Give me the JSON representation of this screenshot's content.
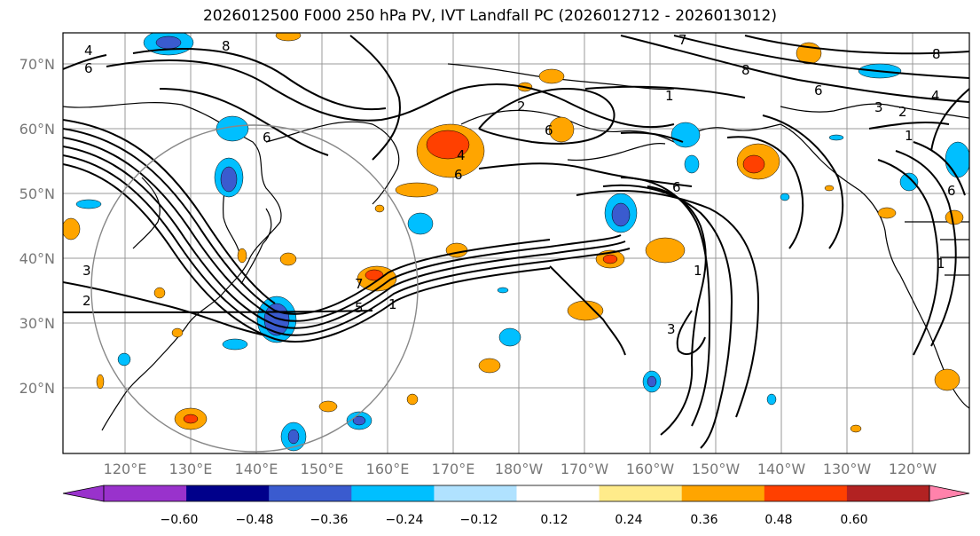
{
  "title": "2026012500 F000 250 hPa PV, IVT Landfall PC (2026012712 - 2026013012)",
  "lat_labels": [
    "70°N",
    "60°N",
    "50°N",
    "40°N",
    "30°N",
    "20°N"
  ],
  "lon_labels": [
    "120°E",
    "130°E",
    "140°E",
    "150°E",
    "160°E",
    "170°E",
    "180°W",
    "170°W",
    "160°W",
    "150°W",
    "140°W",
    "130°W",
    "120°W"
  ],
  "colorbar": {
    "ticks": [
      "−0.60",
      "−0.48",
      "−0.36",
      "−0.24",
      "−0.12",
      "0.12",
      "0.24",
      "0.36",
      "0.48",
      "0.60"
    ],
    "colors": [
      "#9932cc",
      "#00008b",
      "#3a5bcf",
      "#00bfff",
      "#b0e2ff",
      "#ffffff",
      "#ffeb8a",
      "#ffa500",
      "#ff4000",
      "#b22222",
      "#ff82ab"
    ]
  },
  "contour_labels": [
    "6",
    "4",
    "2",
    "3",
    "8",
    "1",
    "7",
    "5"
  ]
}
